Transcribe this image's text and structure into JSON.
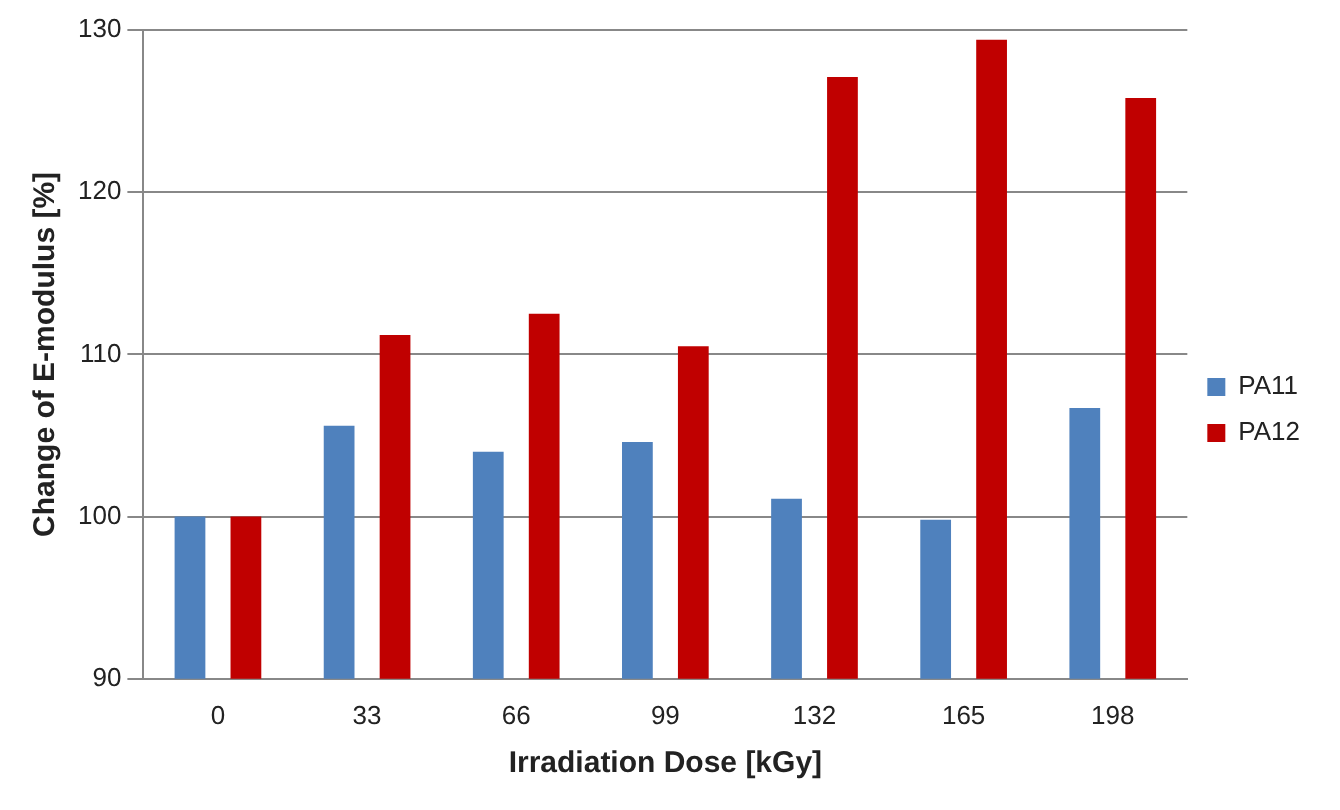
{
  "chart_data": {
    "type": "bar",
    "xlabel": "Irradiation Dose [kGy]",
    "ylabel": "Change of E-modulus [%]",
    "categories": [
      "0",
      "33",
      "66",
      "99",
      "132",
      "165",
      "198"
    ],
    "series": [
      {
        "name": "PA11",
        "color": "#4f81bd",
        "values": [
          100,
          105.6,
          104,
          104.6,
          101.1,
          99.8,
          106.7
        ]
      },
      {
        "name": "PA12",
        "color": "#c00000",
        "values": [
          100,
          111.2,
          112.5,
          110.5,
          127.1,
          129.4,
          125.8
        ]
      }
    ],
    "ylim": [
      90,
      130
    ],
    "yticks": [
      90,
      100,
      110,
      120,
      130
    ],
    "grid": "y",
    "legend": "right"
  }
}
